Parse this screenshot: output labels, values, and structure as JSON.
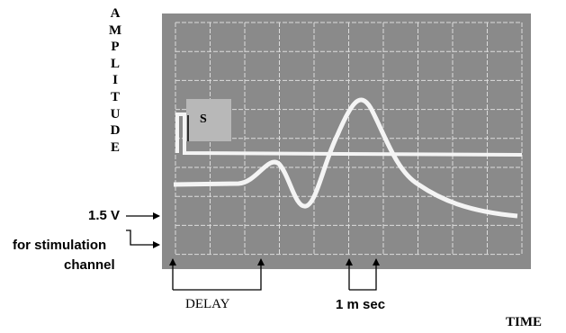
{
  "axis_labels": {
    "y": "AMPLITUDE",
    "x": "TIME"
  },
  "stimulus_box": "S",
  "annotations": {
    "voltage": [
      "1.5 V",
      "for stimulation",
      "channel"
    ],
    "delay": "DELAY",
    "time_scale": "1 m sec"
  }
}
